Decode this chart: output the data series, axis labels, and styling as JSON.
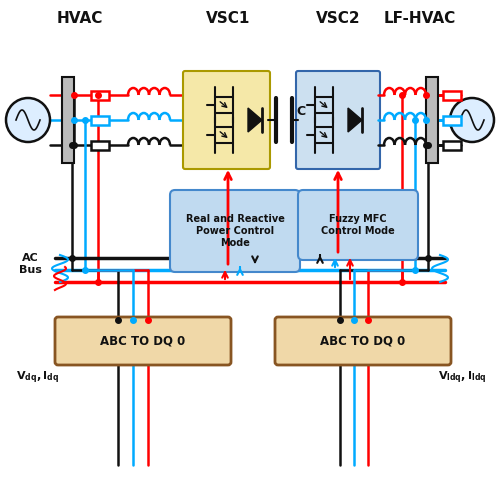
{
  "bg_color": "#ffffff",
  "hvac_label": "HVAC",
  "lfhvac_label": "LF-HVAC",
  "vsc1_label": "VSC1",
  "vsc2_label": "VSC2",
  "ac_bus_label": "AC\nBus",
  "abc_label": "ABC TO DQ 0",
  "ctrl1_label": "Real and Reactive\nPower Control\nMode",
  "ctrl2_label": "Fuzzy MFC\nControl Mode",
  "colors": {
    "red": "#ff0000",
    "blue": "#00aaff",
    "black": "#111111",
    "vsc1_fill": "#f5e8a8",
    "vsc2_fill": "#cce0f0",
    "ctrl_fill": "#c0daf0",
    "abc_fill": "#f0d8a8",
    "bar_fill": "#bbbbbb"
  },
  "figsize": [
    5.0,
    4.79
  ],
  "dpi": 100
}
